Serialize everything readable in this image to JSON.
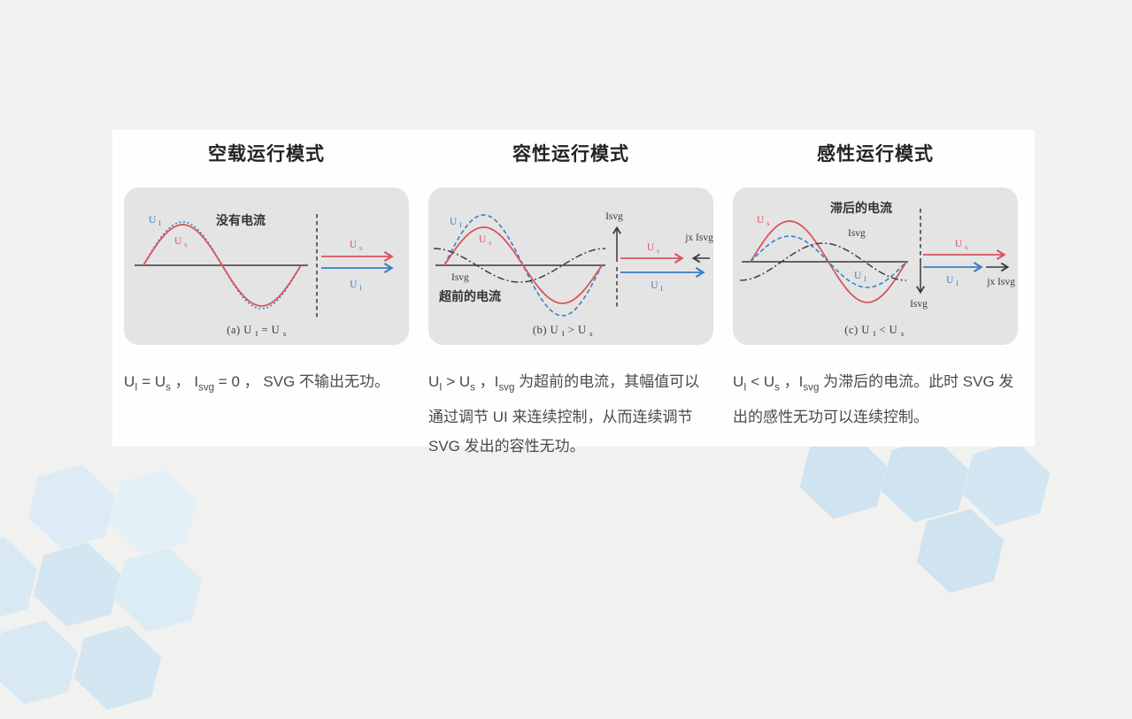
{
  "slide": {
    "background_hex": "#f1f1ef",
    "card_hex": "#fefefe",
    "panel_hex": "#e4e4e4",
    "accent_red_hex": "#d9545c",
    "accent_blue_hex": "#3d7ec5",
    "ink_hex": "#3a3a3a",
    "hexagon_decor_hex": "#d5e7f3"
  },
  "sym": {
    "UI": [
      {
        "t": "U "
      },
      {
        "s": "I"
      }
    ],
    "Us": [
      {
        "t": "U "
      },
      {
        "s": "s"
      }
    ],
    "Isvg": [
      {
        "t": "Isvg"
      }
    ],
    "jxIsvg": [
      {
        "t": "jx Isvg"
      }
    ]
  },
  "columns": [
    {
      "title": "空载运行模式",
      "diagram": {
        "annotation": "没有电流",
        "caption": [
          {
            "t": "(a)  U "
          },
          {
            "s": "I"
          },
          {
            "t": " = U "
          },
          {
            "s": "s"
          }
        ]
      },
      "description": [
        {
          "t": "U"
        },
        {
          "s": "I"
        },
        {
          "t": " = U"
        },
        {
          "s": "s"
        },
        {
          "t": " ，  I"
        },
        {
          "s": "svg"
        },
        {
          "t": " = 0 ，  SVG 不输出无功。"
        }
      ]
    },
    {
      "title": "容性运行模式",
      "diagram": {
        "annotation": "超前的电流",
        "caption": [
          {
            "t": "(b)  U "
          },
          {
            "s": "I"
          },
          {
            "t": " > U "
          },
          {
            "s": "s"
          }
        ]
      },
      "description": [
        {
          "t": "U"
        },
        {
          "s": "I"
        },
        {
          "t": " > U"
        },
        {
          "s": "s"
        },
        {
          "t": " ，I"
        },
        {
          "s": "svg"
        },
        {
          "t": " 为超前的电流，其幅值可以通过调节 UI 来连续控制，从而连续调节 SVG 发出的容性无功。"
        }
      ]
    },
    {
      "title": "感性运行模式",
      "diagram": {
        "annotation": "滞后的电流",
        "caption": [
          {
            "t": "(c)  U "
          },
          {
            "s": "I"
          },
          {
            "t": " < U "
          },
          {
            "s": "s"
          }
        ]
      },
      "description": [
        {
          "t": "U"
        },
        {
          "s": "I"
        },
        {
          "t": " <  U"
        },
        {
          "s": "s"
        },
        {
          "t": " ，I"
        },
        {
          "s": "svg"
        },
        {
          "t": " 为滞后的电流。此时 SVG 发出的感性无功可以连续控制。"
        }
      ]
    }
  ]
}
